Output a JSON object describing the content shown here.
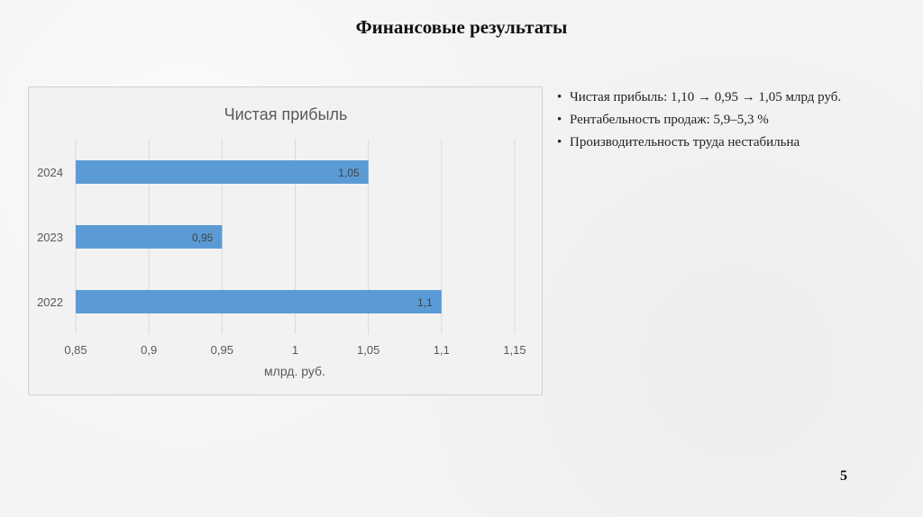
{
  "slide": {
    "title": "Финансовые результаты",
    "page_number": "5",
    "bullet_symbol": "•",
    "bullets": [
      "Чистая прибыль: 1,10 → 0,95 → 1,05 млрд руб.",
      "Рентабельность продаж: 5,9–5,3 %",
      "Производительность труда нестабильна"
    ]
  },
  "chart_data": {
    "type": "bar",
    "orientation": "horizontal",
    "title": "Чистая прибыль",
    "xlabel": "млрд. руб.",
    "ylabel": "",
    "categories": [
      "2024",
      "2023",
      "2022"
    ],
    "values": [
      1.05,
      0.95,
      1.1
    ],
    "value_labels": [
      "1,05",
      "0,95",
      "1,1"
    ],
    "xlim": [
      0.85,
      1.15
    ],
    "x_ticks": [
      0.85,
      0.9,
      0.95,
      1,
      1.05,
      1.1,
      1.15
    ],
    "x_tick_labels": [
      "0,85",
      "0,9",
      "0,95",
      "1",
      "1,05",
      "1,1",
      "1,15"
    ],
    "grid": "vertical",
    "legend": "none",
    "colors": {
      "bar": "#5b9bd5",
      "grid": "#d9d9d9",
      "text": "#595959",
      "title": "#595959"
    }
  }
}
